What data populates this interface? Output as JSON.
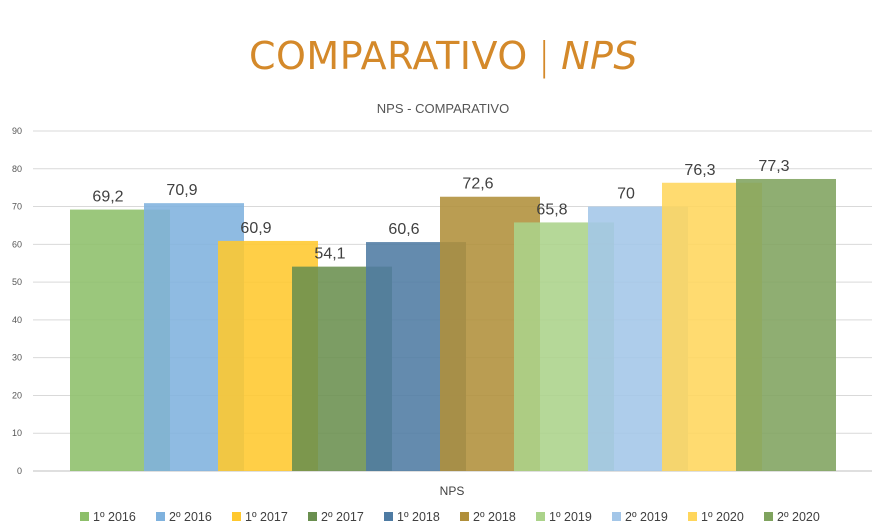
{
  "header": {
    "title_main": "COMPARATIVO",
    "title_sep": "|",
    "title_em": "NPS"
  },
  "chart_data": {
    "type": "bar",
    "title": "NPS - COMPARATIVO",
    "categories": [
      "NPS"
    ],
    "xlabel": "",
    "ylabel": "",
    "ylim": [
      0,
      90
    ],
    "yticks": [
      0,
      10,
      20,
      30,
      40,
      50,
      60,
      70,
      80,
      90
    ],
    "grid": true,
    "legend": "bottom",
    "series": [
      {
        "name": "1º 2016",
        "values": [
          69.2
        ],
        "label": "69,2",
        "color": "#8DBF6A"
      },
      {
        "name": "2º 2016",
        "values": [
          70.9
        ],
        "label": "70,9",
        "color": "#7FB2DE"
      },
      {
        "name": "1º 2017",
        "values": [
          60.9
        ],
        "label": "60,9",
        "color": "#FFC82E"
      },
      {
        "name": "2º 2017",
        "values": [
          54.1
        ],
        "label": "54,1",
        "color": "#6A8F4F"
      },
      {
        "name": "1º 2018",
        "values": [
          60.6
        ],
        "label": "60,6",
        "color": "#4E7BA3"
      },
      {
        "name": "2º 2018",
        "values": [
          72.6
        ],
        "label": "72,6",
        "color": "#B08F3A"
      },
      {
        "name": "1º 2019",
        "values": [
          65.8
        ],
        "label": "65,8",
        "color": "#ABD38A"
      },
      {
        "name": "2º 2019",
        "values": [
          70
        ],
        "label": "70",
        "color": "#A3C6E8"
      },
      {
        "name": "1º 2020",
        "values": [
          76.3
        ],
        "label": "76,3",
        "color": "#FFD65C"
      },
      {
        "name": "2º 2020",
        "values": [
          77.3
        ],
        "label": "77,3",
        "color": "#7FA35E"
      }
    ]
  }
}
